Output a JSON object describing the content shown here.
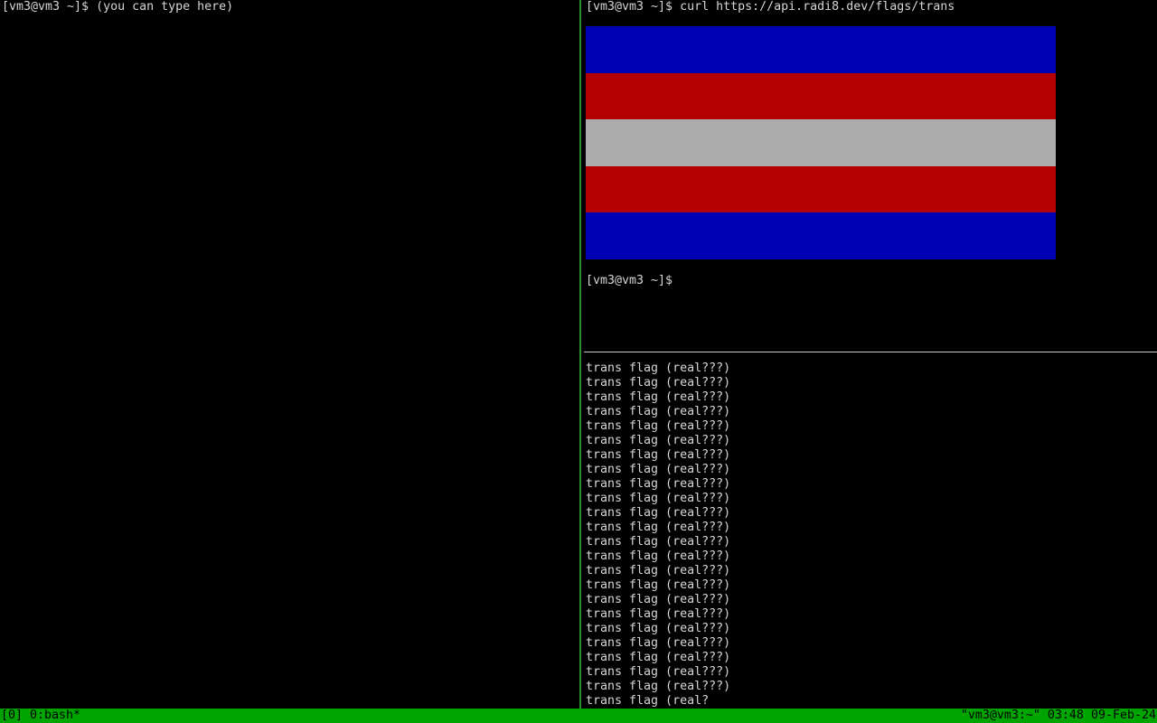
{
  "terminal": {
    "colors": {
      "background": "#000000",
      "foreground": "#d6d6d6",
      "active_pane_border": "#2e8f2e",
      "inactive_pane_border": "#c8c8c8",
      "status_bg": "#00a400",
      "status_fg": "#000000"
    },
    "left_pane": {
      "prompt_line": "[vm3@vm3 ~]$ (you can type here)"
    },
    "top_right_pane": {
      "command_line": "[vm3@vm3 ~]$ curl https://api.radi8.dev/flags/trans",
      "prompt_line": "[vm3@vm3 ~]$",
      "flag_image": {
        "name": "trans-flag-sixel-render",
        "stripe_colors": [
          "#0000b4",
          "#b40000",
          "#ababab",
          "#b40000",
          "#0000b4"
        ]
      }
    },
    "bottom_right_pane": {
      "repeated_line": "trans flag (real???)",
      "repeat_count": 23,
      "partial_line": "trans flag (real?"
    },
    "status_bar": {
      "left": "[0] 0:bash*",
      "right": "\"vm3@vm3:~\" 03:48 09-Feb-24"
    }
  }
}
